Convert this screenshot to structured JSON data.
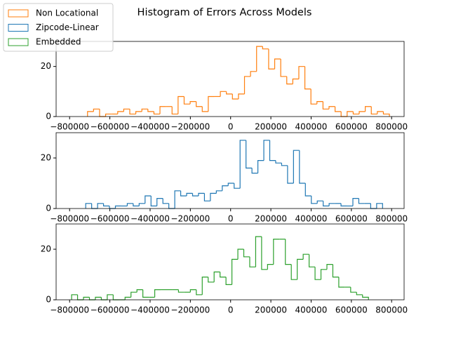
{
  "chart_data": [
    {
      "type": "histogram",
      "title": "Histogram of Errors Across Models",
      "series": [
        {
          "name": "Non Locational",
          "color": "#ff7f0e",
          "bins": [
            -711000,
            -681000,
            -651000,
            -621000,
            -591000,
            -561000,
            -531000,
            -501000,
            -471000,
            -441000,
            -411000,
            -381000,
            -351000,
            -321000,
            -291000,
            -261000,
            -231000,
            -201000,
            -171000,
            -141000,
            -111000,
            -81000,
            -51000,
            -21000,
            9000,
            39000,
            69000,
            99000,
            129000,
            159000,
            189000,
            219000,
            249000,
            279000,
            309000,
            339000,
            369000,
            399000,
            429000,
            459000,
            489000,
            519000,
            549000,
            579000,
            609000,
            639000,
            669000,
            699000,
            729000,
            759000,
            789000
          ],
          "values": [
            2,
            3,
            0,
            1,
            1,
            2,
            3,
            1,
            2,
            3,
            2,
            1,
            4,
            4,
            1,
            8,
            5,
            6,
            4,
            2,
            8,
            8,
            10,
            9,
            7,
            9,
            16,
            18,
            28,
            27,
            19,
            23,
            16,
            13,
            15,
            20,
            11,
            5,
            6,
            3,
            4,
            2,
            0,
            2,
            1,
            2,
            4,
            1,
            2,
            1
          ]
        }
      ],
      "xlim": [
        -867000,
        862000
      ],
      "ylim": [
        0,
        30
      ],
      "xticks": [
        {
          "value": -800000,
          "label": "−800000"
        },
        {
          "value": -600000,
          "label": "−600000"
        },
        {
          "value": -400000,
          "label": "−400000"
        },
        {
          "value": -200000,
          "label": "−200000"
        },
        0,
        200000,
        400000,
        600000,
        800000
      ],
      "yticks": [
        0,
        20
      ]
    },
    {
      "type": "histogram",
      "series": [
        {
          "name": "Zipcode-Linear",
          "color": "#1f77b4",
          "bins": [
            -720000,
            -690500,
            -661000,
            -631500,
            -602000,
            -572500,
            -543000,
            -513500,
            -484000,
            -454500,
            -425000,
            -395500,
            -366000,
            -336500,
            -307000,
            -277500,
            -248000,
            -218500,
            -189000,
            -159500,
            -130000,
            -100500,
            -71000,
            -41500,
            -12000,
            17500,
            47000,
            76500,
            106000,
            135500,
            165000,
            194500,
            224000,
            253500,
            283000,
            312500,
            342000,
            371500,
            401000,
            430500,
            460000,
            489500,
            519000,
            548500,
            578000,
            607500,
            637000,
            666500,
            696000,
            725500,
            755000
          ],
          "values": [
            2,
            0,
            2,
            1,
            0,
            1,
            1,
            2,
            1,
            2,
            5,
            1,
            4,
            2,
            0,
            7,
            5,
            6,
            5,
            6,
            3,
            6,
            7,
            9,
            10,
            8,
            27,
            16,
            14,
            19,
            27,
            19,
            18,
            17,
            10,
            23,
            10,
            5,
            2,
            3,
            1,
            2,
            2,
            1,
            1,
            4,
            2,
            2,
            0,
            2
          ]
        }
      ],
      "xlim": [
        -867000,
        862000
      ],
      "ylim": [
        0,
        30
      ],
      "xticks": [
        {
          "value": -800000,
          "label": "−800000"
        },
        {
          "value": -600000,
          "label": "−600000"
        },
        {
          "value": -400000,
          "label": "−400000"
        },
        {
          "value": -200000,
          "label": "−200000"
        },
        0,
        200000,
        400000,
        600000,
        800000
      ],
      "yticks": [
        0,
        20
      ]
    },
    {
      "type": "histogram",
      "series": [
        {
          "name": "Embedded",
          "color": "#2ca02c",
          "bins": [
            -790000,
            -760500,
            -731000,
            -701500,
            -672000,
            -642500,
            -613000,
            -583500,
            -554000,
            -524500,
            -495000,
            -465500,
            -436000,
            -406500,
            -377000,
            -347500,
            -318000,
            -288500,
            -259000,
            -229500,
            -200000,
            -170500,
            -141000,
            -111500,
            -82000,
            -52500,
            -23000,
            6500,
            36000,
            65500,
            95000,
            124500,
            154000,
            183500,
            213000,
            242500,
            272000,
            301500,
            331000,
            360500,
            390000,
            419500,
            449000,
            478500,
            508000,
            537500,
            567000,
            596500,
            626000,
            655500,
            685000
          ],
          "values": [
            2,
            0,
            1,
            0,
            1,
            0,
            2,
            0,
            0,
            1,
            3,
            4,
            1,
            1,
            4,
            4,
            4,
            4,
            3,
            3,
            4,
            2,
            9,
            7,
            11,
            9,
            6,
            16,
            20,
            17,
            13,
            25,
            12,
            14,
            24,
            24,
            14,
            8,
            16,
            18,
            13,
            8,
            12,
            14,
            9,
            5,
            5,
            3,
            2,
            1
          ]
        }
      ],
      "xlim": [
        -867000,
        862000
      ],
      "ylim": [
        0,
        30
      ],
      "xticks": [
        {
          "value": -800000,
          "label": "−800000"
        },
        {
          "value": -600000,
          "label": "−600000"
        },
        {
          "value": -400000,
          "label": "−400000"
        },
        {
          "value": -200000,
          "label": "−200000"
        },
        0,
        200000,
        400000,
        600000,
        800000
      ],
      "yticks": [
        0,
        20
      ]
    }
  ]
}
